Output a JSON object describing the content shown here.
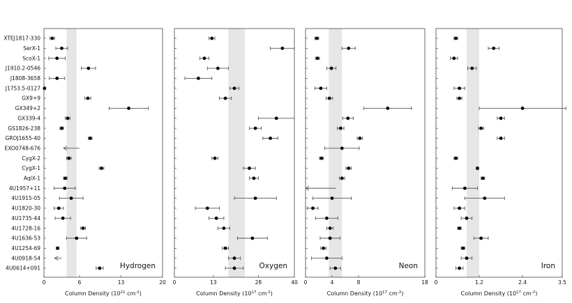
{
  "chart_data": {
    "type": "scatter",
    "sources": [
      "XTEJ1817-330",
      "SerX-1",
      "ScoX-1",
      "J1910.2-0546",
      "J1808-3658",
      "J1753.5-0127",
      "GX9+9",
      "GX349+2",
      "GX339-4",
      "GS1826-238",
      "GROJ1655-40",
      "EXO0748-676",
      "CygX-2",
      "CygX-1",
      "AqlX-1",
      "4U1957+11",
      "4U1915-05",
      "4U1820-30",
      "4U1735-44",
      "4U1728-16",
      "4U1636-53",
      "4U1254-69",
      "4U0918-54",
      "4U0614+091"
    ],
    "panels": [
      {
        "name": "Hydrogen",
        "xlabel": "Column Density (10",
        "xlabel_exp": "21",
        "xlabel_unit": " cm",
        "xlabel_unit_exp": "-2",
        "xlabel_close": ")",
        "xlim": [
          0,
          20
        ],
        "xticks": [
          0,
          6,
          13,
          20
        ],
        "band": [
          3.8,
          5.5
        ],
        "values": [
          1.4,
          3.0,
          2.2,
          7.5,
          2.2,
          0.1,
          7.4,
          14.3,
          4.0,
          3.0,
          7.8,
          3.3,
          4.2,
          9.7,
          3.6,
          3.5,
          4.6,
          2.5,
          3.2,
          6.6,
          5.5,
          2.3,
          1.8,
          9.4
        ],
        "err_lo": [
          0.4,
          1.0,
          1.4,
          1.2,
          1.3,
          0.1,
          0.5,
          3.3,
          0.4,
          0.3,
          0.3,
          0,
          0.4,
          0.4,
          0.3,
          1.8,
          2.0,
          0.8,
          1.3,
          0.4,
          1.7,
          0.2,
          0,
          0.6
        ],
        "err_hi": [
          0.4,
          1.0,
          1.4,
          1.2,
          1.3,
          0.1,
          0.5,
          3.3,
          0.4,
          0.3,
          0.3,
          0,
          0.4,
          0.4,
          0.3,
          1.8,
          2.0,
          0.8,
          1.3,
          0.4,
          1.7,
          0.2,
          0,
          0.6
        ],
        "upper_limit": [
          false,
          false,
          false,
          false,
          false,
          false,
          false,
          false,
          false,
          false,
          false,
          true,
          false,
          false,
          false,
          false,
          false,
          false,
          false,
          false,
          false,
          false,
          true,
          false
        ],
        "limit_to": [
          null,
          null,
          null,
          null,
          null,
          null,
          null,
          null,
          null,
          null,
          null,
          6.0,
          null,
          null,
          null,
          null,
          null,
          null,
          null,
          null,
          null,
          null,
          3.0,
          null
        ]
      },
      {
        "name": "Oxygen",
        "xlabel": "Column Density (10",
        "xlabel_exp": "17",
        "xlabel_unit": " cm",
        "xlabel_unit_exp": "-2",
        "xlabel_close": ")",
        "xlim": [
          0,
          40
        ],
        "xticks": [
          0,
          13,
          28,
          40
        ],
        "band": [
          18.0,
          23.5
        ],
        "values": [
          12.5,
          36.0,
          10.0,
          14.5,
          8.0,
          20.0,
          17.0,
          null,
          34.0,
          27.0,
          32.0,
          null,
          13.5,
          25.0,
          26.5,
          null,
          27.0,
          11.0,
          14.0,
          16.5,
          26.0,
          17.0,
          20.0,
          20.0
        ],
        "err_lo": [
          1.0,
          4.0,
          1.5,
          3.5,
          4.5,
          1.5,
          2.0,
          null,
          6.0,
          2.0,
          2.5,
          null,
          1.0,
          2.0,
          1.5,
          null,
          7.0,
          4.0,
          2.5,
          2.0,
          5.0,
          1.0,
          2.0,
          3.0
        ],
        "err_hi": [
          1.0,
          4.0,
          1.5,
          3.5,
          4.5,
          1.5,
          2.0,
          null,
          6.0,
          2.0,
          2.5,
          null,
          1.0,
          2.0,
          1.5,
          null,
          7.0,
          4.0,
          2.5,
          2.0,
          5.0,
          1.0,
          2.0,
          3.0
        ],
        "upper_limit": [
          false,
          false,
          false,
          false,
          false,
          false,
          false,
          false,
          false,
          false,
          false,
          false,
          false,
          false,
          false,
          false,
          false,
          false,
          false,
          false,
          false,
          false,
          false,
          false
        ],
        "limit_to": [
          null,
          null,
          null,
          null,
          null,
          null,
          null,
          null,
          null,
          null,
          null,
          null,
          null,
          null,
          null,
          null,
          null,
          null,
          null,
          null,
          null,
          null,
          null,
          null
        ]
      },
      {
        "name": "Neon",
        "xlabel": "Column Density (10",
        "xlabel_exp": "17",
        "xlabel_unit": " cm",
        "xlabel_unit_exp": "-2",
        "xlabel_close": ")",
        "xlim": [
          0,
          18
        ],
        "xticks": [
          0,
          4,
          8,
          18
        ],
        "band": [
          3.5,
          5.5
        ],
        "values": [
          1.7,
          6.5,
          1.8,
          3.9,
          null,
          2.3,
          3.6,
          12.4,
          6.4,
          5.3,
          8.2,
          5.5,
          2.4,
          6.5,
          5.5,
          null,
          4.0,
          1.1,
          3.2,
          3.7,
          3.7,
          2.7,
          3.2,
          4.5
        ],
        "err_lo": [
          0.3,
          1.0,
          0.3,
          0.7,
          null,
          0.9,
          0.5,
          3.6,
          0.8,
          0.5,
          0.4,
          2.6,
          0.3,
          0.4,
          0.4,
          null,
          2.9,
          0.8,
          1.7,
          0.5,
          1.5,
          0.4,
          2.3,
          0.8
        ],
        "err_hi": [
          0.3,
          1.0,
          0.3,
          0.7,
          null,
          0.9,
          0.5,
          3.6,
          0.8,
          0.5,
          0.4,
          2.6,
          0.3,
          0.4,
          0.4,
          null,
          2.9,
          0.8,
          1.7,
          0.5,
          1.5,
          0.4,
          2.3,
          0.8
        ],
        "upper_limit": [
          false,
          false,
          false,
          false,
          false,
          false,
          false,
          false,
          false,
          false,
          false,
          false,
          false,
          false,
          false,
          true,
          false,
          false,
          false,
          false,
          false,
          false,
          false,
          false
        ],
        "limit_to": [
          null,
          null,
          null,
          null,
          null,
          null,
          null,
          null,
          null,
          null,
          null,
          null,
          null,
          null,
          null,
          4.6,
          null,
          null,
          null,
          null,
          null,
          null,
          null,
          null
        ]
      },
      {
        "name": "Iron",
        "xlabel": "Column Density (10",
        "xlabel_exp": "17",
        "xlabel_unit": " cm",
        "xlabel_unit_exp": "-2",
        "xlabel_close": ")",
        "xlim": [
          0,
          3.5
        ],
        "xticks": [
          0,
          1.2,
          2.4,
          3.5
        ],
        "band": [
          0.85,
          1.2
        ],
        "values": [
          0.55,
          1.6,
          0.5,
          1.0,
          null,
          0.65,
          0.65,
          2.4,
          1.8,
          1.25,
          1.8,
          null,
          0.55,
          1.15,
          1.3,
          0.8,
          1.35,
          0.65,
          0.85,
          0.65,
          1.25,
          0.75,
          0.85,
          0.65
        ],
        "err_lo": [
          0.05,
          0.15,
          0.1,
          0.12,
          null,
          0.15,
          0.07,
          1.2,
          0.1,
          0.07,
          0.1,
          null,
          0.05,
          0.03,
          0.05,
          0.35,
          0.55,
          0.15,
          0.15,
          0.05,
          0.2,
          0.05,
          0.15,
          0.1
        ],
        "err_hi": [
          0.05,
          0.15,
          0.1,
          0.12,
          null,
          0.15,
          0.07,
          1.2,
          0.1,
          0.07,
          0.1,
          null,
          0.05,
          0.03,
          0.05,
          0.35,
          0.55,
          0.15,
          0.15,
          0.05,
          0.2,
          0.05,
          0.15,
          0.1
        ],
        "upper_limit": [
          false,
          false,
          false,
          false,
          false,
          false,
          false,
          false,
          false,
          false,
          false,
          false,
          false,
          false,
          false,
          false,
          false,
          false,
          false,
          false,
          false,
          false,
          false,
          false
        ],
        "limit_to": [
          null,
          null,
          null,
          null,
          null,
          null,
          null,
          null,
          null,
          null,
          null,
          null,
          null,
          null,
          null,
          null,
          null,
          null,
          null,
          null,
          null,
          null,
          null,
          null
        ]
      }
    ],
    "colors": {
      "point": "#000000",
      "errorbar": "#555555",
      "band": "#e6e6e6",
      "axes": "#444444"
    }
  }
}
